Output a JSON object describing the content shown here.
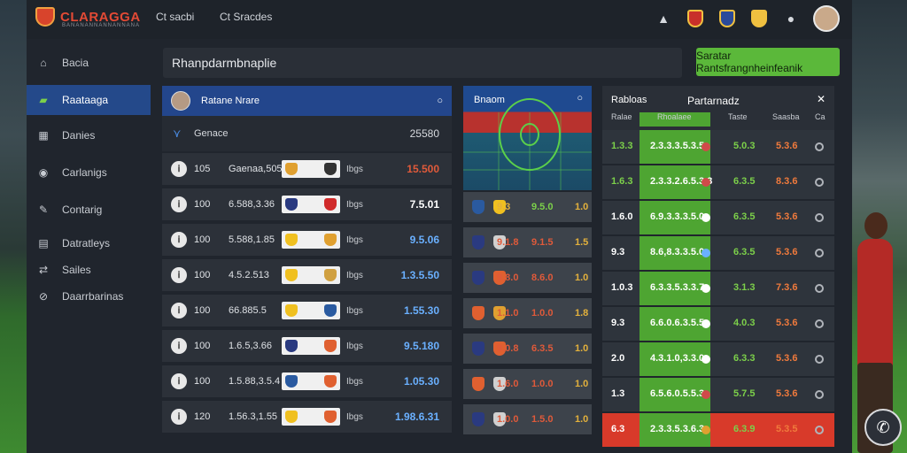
{
  "header": {
    "logo_text": "CLARAGGA",
    "logo_sub": "BANANANNANNANNANA",
    "nav": [
      "Ct sacbi",
      "Ct Sracdes"
    ]
  },
  "sidebar": {
    "items": [
      {
        "label": "Bacia",
        "icon": "house-icon"
      },
      {
        "label": "Raataaga",
        "icon": "ticket-icon",
        "active": true
      },
      {
        "label": "Danies",
        "icon": "calendar-icon"
      },
      {
        "label": "Carlanigs",
        "icon": "globe-icon"
      },
      {
        "label": "Contarig",
        "icon": "wrench-icon"
      },
      {
        "label": "Datratleys",
        "icon": "grid-icon"
      },
      {
        "label": "Sailes",
        "icon": "arrows-icon"
      },
      {
        "label": "Daarrbarinas",
        "icon": "link-icon"
      }
    ]
  },
  "search": {
    "value": "Rhanpdarmbnaplie"
  },
  "cta": {
    "label": "Saratar Rantsfrangnheinfeanik"
  },
  "list": {
    "header_title": "Ratane Nrare",
    "header_icon": "info-icon",
    "sub_label": "Genace",
    "sub_value": "25580",
    "rows": [
      {
        "num": "105",
        "code": "Gaenaa,505",
        "tag": "Ibgs",
        "value": "15.500",
        "color": "#e05a3a",
        "chip1": "#e0a030",
        "chip2": "#333333"
      },
      {
        "num": "100",
        "code": "6.588,3.36",
        "tag": "Ibgs",
        "value": "7.5.01",
        "color": "#ffffff",
        "chip1": "#2a3a80",
        "chip2": "#d02a2a"
      },
      {
        "num": "100",
        "code": "5.588,1.85",
        "tag": "Ibgs",
        "value": "9.5.06",
        "color": "#6ab0ff",
        "chip1": "#f0c020",
        "chip2": "#e0a030"
      },
      {
        "num": "100",
        "code": "4.5.2.513",
        "tag": "Ibgs",
        "value": "1.3.5.50",
        "color": "#6ab0ff",
        "chip1": "#f0c020",
        "chip2": "#d0a040"
      },
      {
        "num": "100",
        "code": "66.885.5",
        "tag": "Ibgs",
        "value": "1.55.30",
        "color": "#6ab0ff",
        "chip1": "#f0c020",
        "chip2": "#2a5aa0"
      },
      {
        "num": "100",
        "code": "1.6.5,3.66",
        "tag": "Ibgs",
        "value": "9.5.180",
        "color": "#6ab0ff",
        "chip1": "#2a3a80",
        "chip2": "#e06030"
      },
      {
        "num": "100",
        "code": "1.5.88,3.5.4",
        "tag": "Ibgs",
        "value": "1.05.30",
        "color": "#6ab0ff",
        "chip1": "#2a5aa0",
        "chip2": "#e06030"
      },
      {
        "num": "120",
        "code": "1.56.3,1.55",
        "tag": "Ibgs",
        "value": "1.98.6.31",
        "color": "#6ab0ff",
        "chip1": "#f0c020",
        "chip2": "#e06030"
      }
    ]
  },
  "middle": {
    "title": "Bnaom",
    "rows": [
      {
        "a": "9.3",
        "b": "9.5.0",
        "c": "1.0",
        "a_color": "#e3b13c",
        "b_color": "#7cd04a",
        "chip1": "#2a5aa0",
        "chip2": "#f0c020"
      },
      {
        "a": "9.1.8",
        "b": "9.1.5",
        "c": "1.5",
        "a_color": "#e05a3a",
        "b_color": "#e05a3a",
        "chip1": "#2a3a80",
        "chip2": "#d0d0d0"
      },
      {
        "a": "9.8.0",
        "b": "8.6.0",
        "c": "1.0",
        "a_color": "#e05a3a",
        "b_color": "#e05a3a",
        "chip1": "#2a3a80",
        "chip2": "#e06030"
      },
      {
        "a": "1.1.0",
        "b": "1.0.0",
        "c": "1.8",
        "a_color": "#e05a3a",
        "b_color": "#e05a3a",
        "chip1": "#e06030",
        "chip2": "#e0a030"
      },
      {
        "a": "9.0.8",
        "b": "6.3.5",
        "c": "1.0",
        "a_color": "#e05a3a",
        "b_color": "#e05a3a",
        "chip1": "#2a3a80",
        "chip2": "#e06030"
      },
      {
        "a": "1.6.0",
        "b": "1.0.0",
        "c": "1.0",
        "a_color": "#e05a3a",
        "b_color": "#e05a3a",
        "chip1": "#e06030",
        "chip2": "#d0d0d0"
      },
      {
        "a": "1.0.0",
        "b": "1.5.0",
        "c": "1.0",
        "a_color": "#e05a3a",
        "b_color": "#e05a3a",
        "chip1": "#2a3a80",
        "chip2": "#d0d0d0"
      }
    ]
  },
  "right": {
    "title": "Rabloas",
    "title2": "Partarnadz",
    "columns": [
      "Ralae",
      "Rhoalaee",
      "Taste",
      "Saasba",
      "Ca"
    ],
    "rows": [
      {
        "a": "1.3.3",
        "green": "2.3.3.3.5.3.5",
        "b": "5.0.3",
        "c": "5.3.6",
        "a_color": "#7cd04a",
        "b_color": "#7cd04a",
        "dot": "#d04a4a"
      },
      {
        "a": "1.6.3",
        "green": "2.3.3.2.6.5.3.3",
        "b": "6.3.5",
        "c": "8.3.6",
        "a_color": "#7cd04a",
        "b_color": "#7cd04a",
        "dot": "#d04a4a"
      },
      {
        "a": "1.6.0",
        "green": "6.9.3.3.3.5.0",
        "b": "6.3.5",
        "c": "5.3.6",
        "a_color": "#ffffff",
        "b_color": "#7cd04a",
        "dot": "#ffffff"
      },
      {
        "a": "9.3",
        "green": "8.6,8.3.3.5.0",
        "b": "6.3.5",
        "c": "5.3.6",
        "a_color": "#ffffff",
        "b_color": "#7cd04a",
        "dot": "#6ab0ff"
      },
      {
        "a": "1.0.3",
        "green": "6.3.3.5.3.3.7",
        "b": "3.1.3",
        "c": "7.3.6",
        "a_color": "#ffffff",
        "b_color": "#7cd04a",
        "dot": "#ffffff"
      },
      {
        "a": "9.3",
        "green": "6.6.0.6.3.5.5",
        "b": "4.0.3",
        "c": "5.3.6",
        "a_color": "#ffffff",
        "b_color": "#7cd04a",
        "dot": "#ffffff"
      },
      {
        "a": "2.0",
        "green": "4.3.1.0,3.3.0",
        "b": "6.3.3",
        "c": "5.3.6",
        "a_color": "#ffffff",
        "b_color": "#7cd04a",
        "dot": "#ffffff"
      },
      {
        "a": "1.3",
        "green": "6.5.6.0.5.5.3",
        "b": "5.7.5",
        "c": "5.3.6",
        "a_color": "#ffffff",
        "b_color": "#7cd04a",
        "dot": "#d04a4a"
      },
      {
        "a": "6.3",
        "green": "2.3.3.5.3.6.3",
        "b": "6.3.9",
        "c": "5.3.5",
        "a_color": "#ffffff",
        "b_color": "#7cd04a",
        "dot": "#e0a030"
      }
    ]
  },
  "colors": {
    "accent_blue": "#24498a",
    "accent_green": "#5bb83a",
    "bg": "#20252d"
  }
}
